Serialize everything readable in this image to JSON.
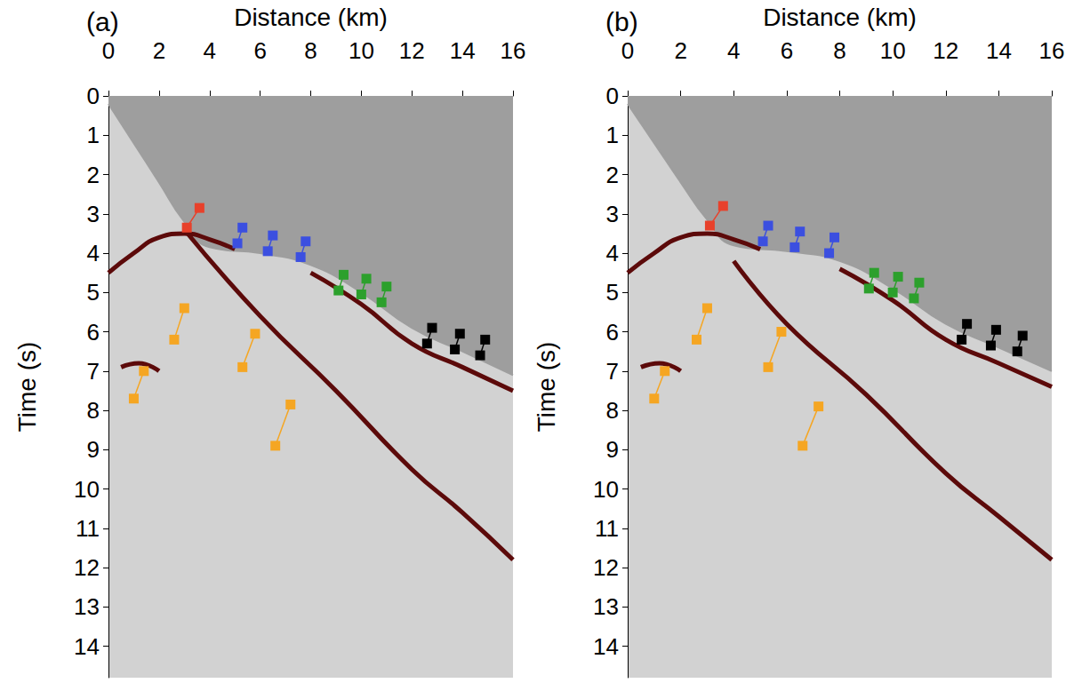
{
  "chart_data": [
    {
      "type": "line",
      "title": "(a)",
      "x_label": "Distance (km)",
      "y_label": "Time (s)",
      "xlim": [
        0,
        16
      ],
      "xticks": [
        0,
        2,
        4,
        6,
        8,
        10,
        12,
        14,
        16
      ],
      "ylim": [
        0,
        14.8
      ],
      "yticks": [
        0,
        1,
        2,
        3,
        4,
        5,
        6,
        7,
        8,
        9,
        10,
        11,
        12,
        13,
        14
      ],
      "grid": false,
      "series": [
        {
          "color": "#9e9e9e",
          "x": [
            0,
            1,
            2,
            3,
            4,
            6,
            8,
            10,
            12,
            14,
            16
          ],
          "values": [
            0.2,
            1.2,
            2.2,
            3.2,
            3.85,
            4.0,
            4.3,
            5.0,
            5.9,
            6.5,
            7.1
          ]
        },
        {
          "color": "#5c0a0a",
          "x": [
            0,
            1,
            2,
            3,
            4,
            5
          ],
          "values": [
            4.5,
            4.0,
            3.6,
            3.5,
            3.65,
            3.9
          ]
        },
        {
          "color": "#5c0a0a",
          "x": [
            3,
            6,
            9,
            12,
            14,
            16
          ],
          "values": [
            3.4,
            5.6,
            7.5,
            9.5,
            10.6,
            11.8
          ]
        },
        {
          "color": "#5c0a0a",
          "x": [
            8,
            10,
            12,
            14,
            16
          ],
          "values": [
            4.5,
            5.3,
            6.3,
            6.9,
            7.5
          ]
        },
        {
          "color": "#5c0a0a",
          "x": [
            0.5,
            1.2,
            2.0
          ],
          "values": [
            6.9,
            6.8,
            7.0
          ]
        }
      ],
      "annotations": [
        {
          "color": "#e8412b",
          "x": [
            3.6,
            3.1
          ],
          "y": [
            2.85,
            3.35
          ]
        },
        {
          "color": "#3b4fe0",
          "x": [
            5.3,
            5.1
          ],
          "y": [
            3.35,
            3.75
          ]
        },
        {
          "color": "#3b4fe0",
          "x": [
            6.5,
            6.3
          ],
          "y": [
            3.55,
            3.95
          ]
        },
        {
          "color": "#3b4fe0",
          "x": [
            7.8,
            7.6
          ],
          "y": [
            3.7,
            4.1
          ]
        },
        {
          "color": "#2ca02c",
          "x": [
            9.3,
            9.1
          ],
          "y": [
            4.55,
            4.95
          ]
        },
        {
          "color": "#2ca02c",
          "x": [
            10.2,
            10.0
          ],
          "y": [
            4.65,
            5.05
          ]
        },
        {
          "color": "#2ca02c",
          "x": [
            11.0,
            10.8
          ],
          "y": [
            4.85,
            5.25
          ]
        },
        {
          "color": "#000000",
          "x": [
            12.8,
            12.6
          ],
          "y": [
            5.9,
            6.3
          ]
        },
        {
          "color": "#000000",
          "x": [
            13.9,
            13.7
          ],
          "y": [
            6.05,
            6.45
          ]
        },
        {
          "color": "#000000",
          "x": [
            14.9,
            14.7
          ],
          "y": [
            6.2,
            6.6
          ]
        },
        {
          "color": "#f5a623",
          "x": [
            1.0,
            1.4
          ],
          "y": [
            7.7,
            7.0
          ]
        },
        {
          "color": "#f5a623",
          "x": [
            2.6,
            3.0
          ],
          "y": [
            6.2,
            5.4
          ]
        },
        {
          "color": "#f5a623",
          "x": [
            5.3,
            5.8
          ],
          "y": [
            6.9,
            6.05
          ]
        },
        {
          "color": "#f5a623",
          "x": [
            6.6,
            7.2
          ],
          "y": [
            8.9,
            7.85
          ]
        }
      ]
    },
    {
      "type": "line",
      "title": "(b)",
      "x_label": "Distance (km)",
      "y_label": "Time (s)",
      "xlim": [
        0,
        16
      ],
      "xticks": [
        0,
        2,
        4,
        6,
        8,
        10,
        12,
        14,
        16
      ],
      "ylim": [
        0,
        14.8
      ],
      "yticks": [
        0,
        1,
        2,
        3,
        4,
        5,
        6,
        7,
        8,
        9,
        10,
        11,
        12,
        13,
        14
      ],
      "grid": false,
      "series": [
        {
          "color": "#9e9e9e",
          "x": [
            0,
            1,
            2,
            3,
            4,
            6,
            8,
            10,
            12,
            14,
            16
          ],
          "values": [
            0.2,
            1.2,
            2.2,
            3.15,
            3.8,
            3.95,
            4.2,
            4.9,
            5.8,
            6.4,
            7.0
          ]
        },
        {
          "color": "#5c0a0a",
          "x": [
            0,
            1,
            2,
            3,
            4,
            5
          ],
          "values": [
            4.5,
            4.0,
            3.6,
            3.5,
            3.65,
            3.9
          ]
        },
        {
          "color": "#5c0a0a",
          "x": [
            4,
            6,
            9,
            12,
            14,
            16
          ],
          "values": [
            4.2,
            5.8,
            7.6,
            9.6,
            10.7,
            11.8
          ]
        },
        {
          "color": "#5c0a0a",
          "x": [
            8,
            10,
            12,
            14,
            16
          ],
          "values": [
            4.4,
            5.2,
            6.2,
            6.8,
            7.4
          ]
        },
        {
          "color": "#5c0a0a",
          "x": [
            0.5,
            1.2,
            2.0
          ],
          "values": [
            6.9,
            6.8,
            7.0
          ]
        }
      ],
      "annotations": [
        {
          "color": "#e8412b",
          "x": [
            3.6,
            3.1
          ],
          "y": [
            2.8,
            3.3
          ]
        },
        {
          "color": "#3b4fe0",
          "x": [
            5.3,
            5.1
          ],
          "y": [
            3.3,
            3.7
          ]
        },
        {
          "color": "#3b4fe0",
          "x": [
            6.5,
            6.3
          ],
          "y": [
            3.45,
            3.85
          ]
        },
        {
          "color": "#3b4fe0",
          "x": [
            7.8,
            7.6
          ],
          "y": [
            3.6,
            4.0
          ]
        },
        {
          "color": "#2ca02c",
          "x": [
            9.3,
            9.1
          ],
          "y": [
            4.5,
            4.9
          ]
        },
        {
          "color": "#2ca02c",
          "x": [
            10.2,
            10.0
          ],
          "y": [
            4.6,
            5.0
          ]
        },
        {
          "color": "#2ca02c",
          "x": [
            11.0,
            10.8
          ],
          "y": [
            4.75,
            5.15
          ]
        },
        {
          "color": "#000000",
          "x": [
            12.8,
            12.6
          ],
          "y": [
            5.8,
            6.2
          ]
        },
        {
          "color": "#000000",
          "x": [
            13.9,
            13.7
          ],
          "y": [
            5.95,
            6.35
          ]
        },
        {
          "color": "#000000",
          "x": [
            14.9,
            14.7
          ],
          "y": [
            6.1,
            6.5
          ]
        },
        {
          "color": "#f5a623",
          "x": [
            1.0,
            1.4
          ],
          "y": [
            7.7,
            7.0
          ]
        },
        {
          "color": "#f5a623",
          "x": [
            2.6,
            3.0
          ],
          "y": [
            6.2,
            5.4
          ]
        },
        {
          "color": "#f5a623",
          "x": [
            5.3,
            5.8
          ],
          "y": [
            6.9,
            6.0
          ]
        },
        {
          "color": "#f5a623",
          "x": [
            6.6,
            7.2
          ],
          "y": [
            8.9,
            7.9
          ]
        }
      ]
    }
  ]
}
